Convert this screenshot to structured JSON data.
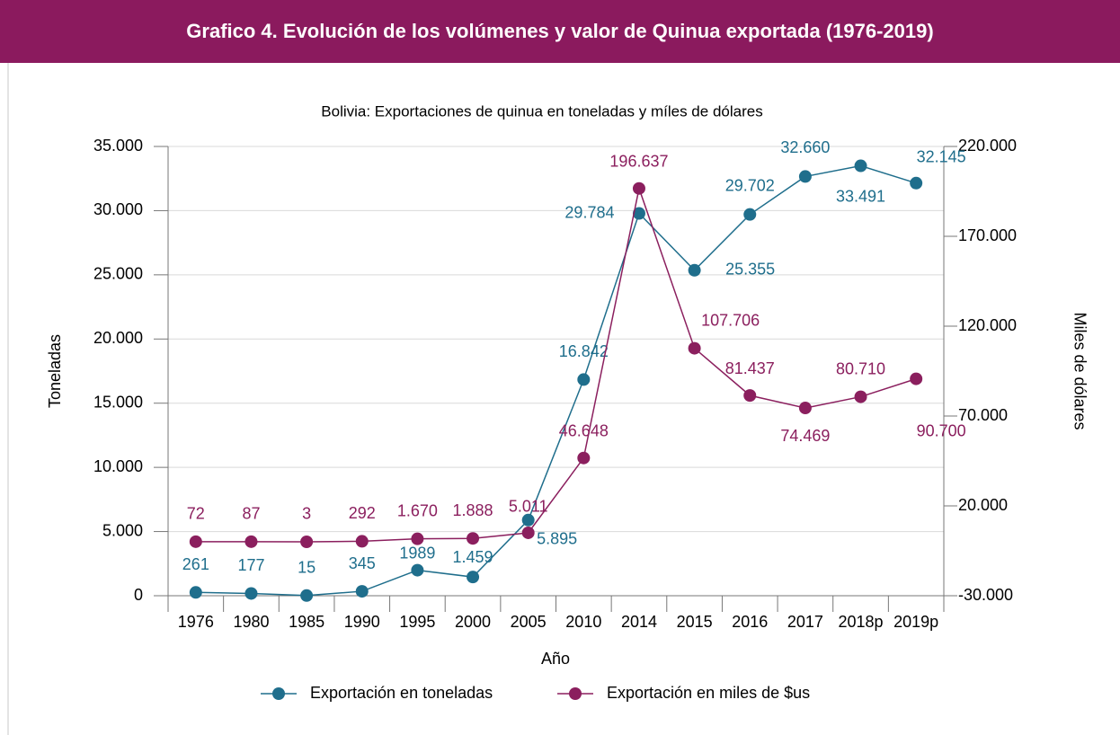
{
  "header": {
    "title": "Grafico 4. Evolución de los volúmenes y valor de Quinua exportada (1976-2019)"
  },
  "chart_data": {
    "type": "line",
    "title": "Bolivia: Exportaciones de quinua en toneladas y míles de dólares",
    "x_label": "Año",
    "y_label": "Toneladas",
    "y2_label": "Miles de dólares",
    "categories": [
      "1976",
      "1980",
      "1985",
      "1990",
      "1995",
      "2000",
      "2005",
      "2010",
      "2014",
      "2015",
      "2016",
      "2017",
      "2018p",
      "2019p"
    ],
    "series": [
      {
        "name": "Exportación en toneladas",
        "color": "#1f6e8c",
        "axis": "y",
        "values": [
          261,
          177,
          15,
          345,
          1989,
          1459,
          5895,
          16842,
          29784,
          25355,
          29702,
          32660,
          33491,
          32145
        ],
        "value_labels": [
          "261",
          "177",
          "15",
          "345",
          "1989",
          "1.459",
          "5.895",
          "16.842",
          "29.784",
          "25.355",
          "29.702",
          "32.660",
          "33.491",
          "32.145"
        ]
      },
      {
        "name": "Exportación en miles de $us",
        "color": "#8b1f5e",
        "axis": "y2",
        "values": [
          72,
          87,
          3,
          292,
          1670,
          1888,
          5011,
          46648,
          196637,
          107706,
          81437,
          74469,
          80710,
          90700
        ],
        "value_labels": [
          "72",
          "87",
          "3",
          "292",
          "1.670",
          "1.888",
          "5.011",
          "46.648",
          "196.637",
          "107.706",
          "81.437",
          "74.469",
          "80.710",
          "90.700"
        ]
      }
    ],
    "ylim": [
      0,
      35000
    ],
    "yticks": [
      0,
      {
        "value": 5000,
        "label": "5.000"
      },
      {
        "value": 10000,
        "label": "10.000"
      },
      {
        "value": 15000,
        "label": "15.000"
      },
      {
        "value": 20000,
        "label": "20.000"
      },
      {
        "value": 25000,
        "label": "25.000"
      },
      {
        "value": 30000,
        "label": "30.000"
      },
      {
        "value": 35000,
        "label": "35.000"
      }
    ],
    "y2lim": [
      -30000,
      220000
    ],
    "y2ticks": [
      {
        "value": -30000,
        "label": "-30.000"
      },
      {
        "value": 20000,
        "label": "20.000"
      },
      {
        "value": 70000,
        "label": "70.000"
      },
      {
        "value": 120000,
        "label": "120.000"
      },
      {
        "value": 170000,
        "label": "170.000"
      },
      {
        "value": 220000,
        "label": "220.000"
      }
    ],
    "grid": true,
    "legend": "bottom"
  }
}
